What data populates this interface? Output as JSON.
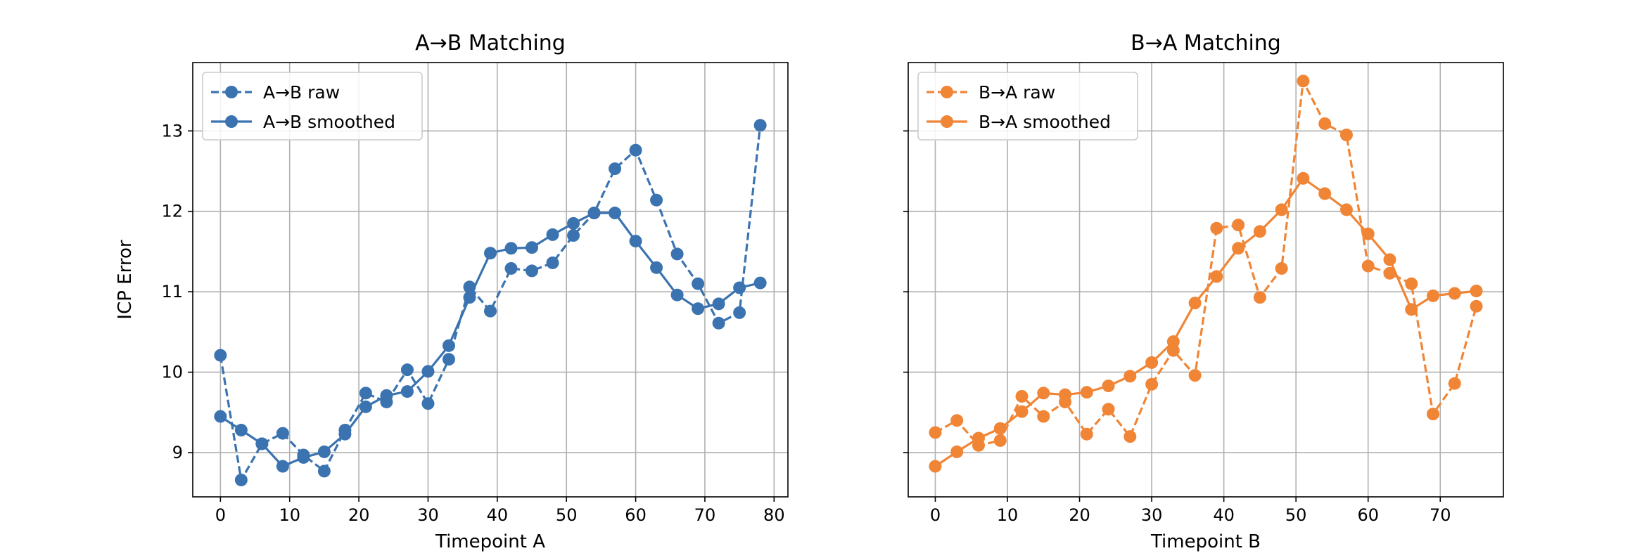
{
  "chart_data": [
    {
      "type": "line",
      "title": "A→B Matching",
      "xlabel": "Timepoint A",
      "ylabel": "ICP Error",
      "xlim": [
        -4,
        82
      ],
      "ylim": [
        8.45,
        13.85
      ],
      "xticks": [
        0,
        10,
        20,
        30,
        40,
        50,
        60,
        70,
        80
      ],
      "yticks": [
        9,
        10,
        11,
        12,
        13
      ],
      "grid": true,
      "legend_position": "top-left",
      "color": "#3a73b0",
      "series": [
        {
          "name": "A→B raw",
          "style": "dashed",
          "x": [
            0,
            3,
            6,
            9,
            12,
            15,
            18,
            21,
            24,
            27,
            30,
            33,
            36,
            39,
            42,
            45,
            48,
            51,
            54,
            57,
            60,
            63,
            66,
            69,
            72,
            75,
            78
          ],
          "y": [
            10.21,
            8.66,
            9.11,
            9.24,
            8.97,
            8.77,
            9.28,
            9.74,
            9.63,
            10.03,
            9.61,
            10.16,
            11.06,
            10.76,
            11.29,
            11.26,
            11.36,
            11.7,
            11.98,
            12.53,
            12.76,
            12.14,
            11.47,
            11.1,
            10.61,
            10.74,
            13.07
          ]
        },
        {
          "name": "A→B smoothed",
          "style": "solid",
          "x": [
            0,
            3,
            6,
            9,
            12,
            15,
            18,
            21,
            24,
            27,
            30,
            33,
            36,
            39,
            42,
            45,
            48,
            51,
            54,
            57,
            60,
            63,
            66,
            69,
            72,
            75,
            78
          ],
          "y": [
            9.45,
            9.28,
            9.11,
            8.83,
            8.94,
            9.01,
            9.23,
            9.57,
            9.71,
            9.76,
            10.01,
            10.33,
            10.93,
            11.48,
            11.54,
            11.55,
            11.71,
            11.85,
            11.98,
            11.98,
            11.63,
            11.3,
            10.96,
            10.79,
            10.85,
            11.05,
            11.11
          ]
        }
      ]
    },
    {
      "type": "line",
      "title": "B→A Matching",
      "xlabel": "Timepoint B",
      "ylabel": "",
      "xlim": [
        -3.75,
        78.75
      ],
      "ylim": [
        8.45,
        13.85
      ],
      "xticks": [
        0,
        10,
        20,
        30,
        40,
        50,
        60,
        70
      ],
      "yticks": [
        9,
        10,
        11,
        12,
        13
      ],
      "grid": true,
      "legend_position": "top-left",
      "color": "#f08536",
      "series": [
        {
          "name": "B→A raw",
          "style": "dashed",
          "x": [
            0,
            3,
            6,
            9,
            12,
            15,
            18,
            21,
            24,
            27,
            30,
            33,
            36,
            39,
            42,
            45,
            48,
            51,
            54,
            57,
            60,
            63,
            66,
            69,
            72,
            75
          ],
          "y": [
            9.25,
            9.4,
            9.09,
            9.15,
            9.7,
            9.45,
            9.63,
            9.23,
            9.54,
            9.2,
            9.85,
            10.27,
            9.96,
            11.79,
            11.83,
            10.93,
            11.29,
            13.62,
            13.09,
            12.95,
            11.32,
            11.23,
            11.1,
            9.48,
            9.86,
            10.82
          ]
        },
        {
          "name": "B→A smoothed",
          "style": "solid",
          "x": [
            0,
            3,
            6,
            9,
            12,
            15,
            18,
            21,
            24,
            27,
            30,
            33,
            36,
            39,
            42,
            45,
            48,
            51,
            54,
            57,
            60,
            63,
            66,
            69,
            72,
            75
          ],
          "y": [
            8.83,
            9.01,
            9.18,
            9.3,
            9.51,
            9.74,
            9.72,
            9.75,
            9.83,
            9.95,
            10.12,
            10.38,
            10.86,
            11.19,
            11.54,
            11.75,
            12.02,
            12.41,
            12.22,
            12.02,
            11.72,
            11.4,
            10.78,
            10.95,
            10.98,
            11.01
          ]
        }
      ]
    }
  ]
}
